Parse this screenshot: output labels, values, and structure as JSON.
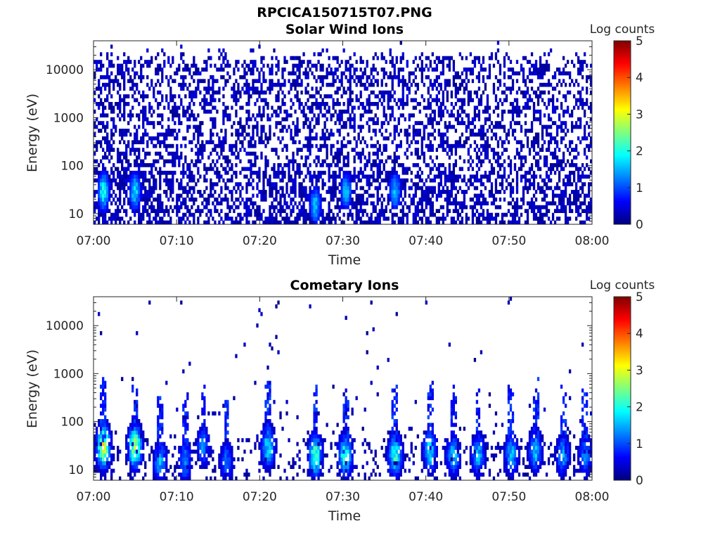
{
  "figure_title": "RPCICA150715T07.PNG",
  "colorbar_label": "Log counts",
  "colorbar_ticks": [
    "0",
    "1",
    "2",
    "3",
    "4",
    "5"
  ],
  "colormap": [
    "#00007f",
    "#0000ff",
    "#007fff",
    "#00ffff",
    "#7fff7f",
    "#ffff00",
    "#ff7f00",
    "#ff0000",
    "#7f0000"
  ],
  "chart_data": [
    {
      "type": "heatmap",
      "title": "Solar Wind Ions",
      "xlabel": "Time",
      "ylabel": "Energy (eV)",
      "x_range": [
        "07:00",
        "08:00"
      ],
      "x_ticks": [
        "07:00",
        "07:10",
        "07:20",
        "07:30",
        "07:40",
        "07:50",
        "08:00"
      ],
      "y_scale": "log",
      "y_range": [
        6,
        40000
      ],
      "y_ticks": [
        "10",
        "100",
        "1000",
        "10000"
      ],
      "y_tick_values": [
        10,
        100,
        1000,
        10000
      ],
      "color_range": [
        0,
        5
      ],
      "colorbar_label": "Log counts",
      "description_values": {
        "background_level_log_counts": 0.3,
        "low_energy_band_eV": [
          6,
          80
        ],
        "bursts": [
          {
            "time_min": 1.2,
            "energy_eV": 30,
            "log_counts": 2.3
          },
          {
            "time_min": 5.0,
            "energy_eV": 30,
            "log_counts": 2.0
          },
          {
            "time_min": 26.7,
            "energy_eV": 15,
            "log_counts": 1.8
          },
          {
            "time_min": 30.4,
            "energy_eV": 30,
            "log_counts": 1.8
          },
          {
            "time_min": 36.3,
            "energy_eV": 30,
            "log_counts": 1.8
          }
        ]
      }
    },
    {
      "type": "heatmap",
      "title": "Cometary Ions",
      "xlabel": "Time",
      "ylabel": "Energy (eV)",
      "x_range": [
        "07:00",
        "08:00"
      ],
      "x_ticks": [
        "07:00",
        "07:10",
        "07:20",
        "07:30",
        "07:40",
        "07:50",
        "08:00"
      ],
      "y_scale": "log",
      "y_range": [
        6,
        40000
      ],
      "y_ticks": [
        "10",
        "100",
        "1000",
        "10000"
      ],
      "y_tick_values": [
        10,
        100,
        1000,
        10000
      ],
      "color_range": [
        0,
        5
      ],
      "colorbar_label": "Log counts",
      "description_values": {
        "bursts": [
          {
            "time_min": 1.2,
            "energy_eV": 30,
            "log_counts": 3.7
          },
          {
            "time_min": 5.0,
            "energy_eV": 30,
            "log_counts": 3.3
          },
          {
            "time_min": 8.0,
            "energy_eV": 15,
            "log_counts": 1.8
          },
          {
            "time_min": 11.0,
            "energy_eV": 15,
            "log_counts": 1.6
          },
          {
            "time_min": 13.2,
            "energy_eV": 30,
            "log_counts": 1.5
          },
          {
            "time_min": 16.0,
            "energy_eV": 15,
            "log_counts": 1.4
          },
          {
            "time_min": 21.0,
            "energy_eV": 30,
            "log_counts": 2.2
          },
          {
            "time_min": 26.7,
            "energy_eV": 20,
            "log_counts": 2.8
          },
          {
            "time_min": 30.3,
            "energy_eV": 20,
            "log_counts": 2.6
          },
          {
            "time_min": 36.3,
            "energy_eV": 20,
            "log_counts": 2.6
          },
          {
            "time_min": 40.5,
            "energy_eV": 25,
            "log_counts": 2.2
          },
          {
            "time_min": 43.3,
            "energy_eV": 20,
            "log_counts": 2.0
          },
          {
            "time_min": 46.3,
            "energy_eV": 20,
            "log_counts": 1.9
          },
          {
            "time_min": 50.3,
            "energy_eV": 20,
            "log_counts": 1.9
          },
          {
            "time_min": 53.2,
            "energy_eV": 25,
            "log_counts": 2.0
          },
          {
            "time_min": 56.5,
            "energy_eV": 20,
            "log_counts": 1.8
          },
          {
            "time_min": 59.2,
            "energy_eV": 20,
            "log_counts": 1.6
          }
        ]
      }
    }
  ]
}
